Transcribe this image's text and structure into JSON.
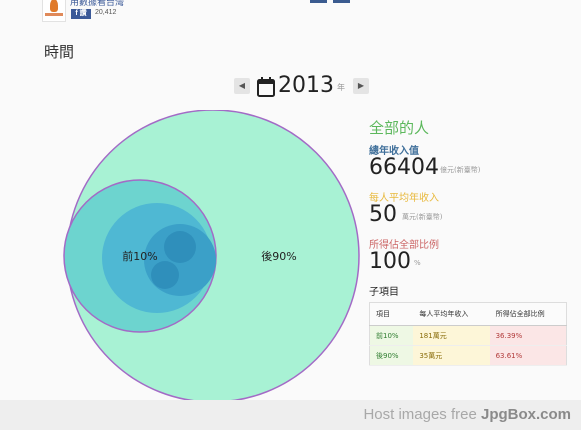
{
  "header": {
    "site_name": "用數據看台灣",
    "fb_label": "f 讚",
    "fb_count": "20,412"
  },
  "section_title": "時間",
  "year_selector": {
    "prev_label": "◀",
    "next_label": "▶",
    "year": "2013",
    "year_unit": "年"
  },
  "chart_data": {
    "type": "bubble",
    "circles": [
      {
        "label": "後90%",
        "value": 90
      },
      {
        "label": "前10%",
        "value": 10
      }
    ],
    "colors": {
      "outer": "#a8f2d4",
      "mid": "#6dd4cf",
      "inner": "#4fb8d3",
      "core": "#3ba0c8",
      "dot": "#2f8fbb",
      "stroke": "#a36bc6"
    }
  },
  "panel": {
    "title": "全部的人",
    "total_label": "總年收入值",
    "total_value": "66404",
    "total_unit": "億元(新臺幣)",
    "avg_label": "每人平均年收入",
    "avg_value": "50",
    "avg_unit": "萬元(新臺幣)",
    "share_label": "所得佔全部比例",
    "share_value": "100",
    "share_unit": "%",
    "sub_label": "子項目"
  },
  "table": {
    "headers": [
      "項目",
      "每人平均年收入",
      "所得佔全部比例"
    ],
    "rows": [
      [
        "前10%",
        "181萬元",
        "36.39%"
      ],
      [
        "後90%",
        "35萬元",
        "63.61%"
      ]
    ]
  },
  "watermark": {
    "prefix": "Host images free ",
    "brand": "JpgBox.com"
  }
}
